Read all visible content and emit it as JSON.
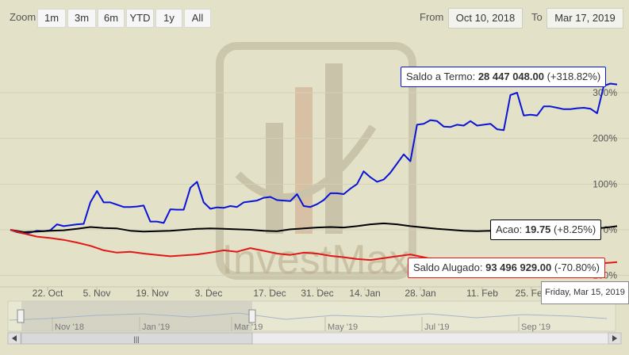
{
  "zoom": {
    "label": "Zoom",
    "buttons": [
      "1m",
      "3m",
      "6m",
      "YTD",
      "1y",
      "All"
    ]
  },
  "range": {
    "from_label": "From",
    "from_value": "Oct 10, 2018",
    "to_label": "To",
    "to_value": "Mar 17, 2019"
  },
  "tooltips": {
    "termo": {
      "name": "Saldo a Termo",
      "value": "28 447 048.00",
      "change": "(+318.82%)"
    },
    "acao": {
      "name": "Acao",
      "value": "19.75",
      "change": "(+8.25%)"
    },
    "alugado": {
      "name": "Saldo Alugado",
      "value": "93 496 929.00",
      "change": "(-70.80%)"
    }
  },
  "date_tooltip": "Friday, Mar 15, 2019",
  "watermark": "InvestMax",
  "colors": {
    "background": "#e3e2c8",
    "termo": "#0a14d8",
    "acao": "#000000",
    "alugado": "#e01818"
  },
  "navigator": {
    "ticks": [
      "Nov '18",
      "Jan '19",
      "Mar '19",
      "May '19",
      "Jul '19",
      "Sep '19"
    ]
  },
  "chart_data": {
    "type": "line",
    "x_ticks": [
      "22. Oct",
      "5. Nov",
      "19. Nov",
      "3. Dec",
      "17. Dec",
      "31. Dec",
      "14. Jan",
      "28. Jan",
      "11. Feb",
      "25. Feb"
    ],
    "y_ticks": [
      "300%",
      "200%",
      "100%",
      "0%",
      "-100%"
    ],
    "ylim": [
      -100,
      350
    ],
    "series": [
      {
        "name": "Saldo a Termo",
        "color": "#0a14d8",
        "values": [
          [
            0,
            0
          ],
          [
            1,
            -5
          ],
          [
            2,
            -8
          ],
          [
            3,
            -6
          ],
          [
            4,
            -2
          ],
          [
            5,
            -3
          ],
          [
            6,
            -1
          ],
          [
            7,
            12
          ],
          [
            8,
            8
          ],
          [
            9,
            10
          ],
          [
            10,
            12
          ],
          [
            11,
            13
          ],
          [
            12,
            60
          ],
          [
            13,
            85
          ],
          [
            14,
            60
          ],
          [
            15,
            60
          ],
          [
            16,
            55
          ],
          [
            17,
            50
          ],
          [
            18,
            50
          ],
          [
            19,
            51
          ],
          [
            20,
            53
          ],
          [
            21,
            18
          ],
          [
            22,
            18
          ],
          [
            23,
            15
          ],
          [
            24,
            45
          ],
          [
            25,
            44
          ],
          [
            26,
            44
          ],
          [
            27,
            92
          ],
          [
            28,
            105
          ],
          [
            29,
            60
          ],
          [
            30,
            46
          ],
          [
            31,
            49
          ],
          [
            32,
            48
          ],
          [
            33,
            52
          ],
          [
            34,
            50
          ],
          [
            35,
            60
          ],
          [
            36,
            62
          ],
          [
            37,
            64
          ],
          [
            38,
            70
          ],
          [
            39,
            72
          ],
          [
            40,
            65
          ],
          [
            41,
            64
          ],
          [
            42,
            63
          ],
          [
            43,
            78
          ],
          [
            44,
            52
          ],
          [
            45,
            50
          ],
          [
            46,
            56
          ],
          [
            47,
            65
          ],
          [
            48,
            80
          ],
          [
            49,
            80
          ],
          [
            50,
            78
          ],
          [
            51,
            90
          ],
          [
            52,
            100
          ],
          [
            53,
            128
          ],
          [
            54,
            115
          ],
          [
            55,
            105
          ],
          [
            56,
            110
          ],
          [
            57,
            125
          ],
          [
            58,
            145
          ],
          [
            59,
            165
          ],
          [
            60,
            150
          ],
          [
            61,
            230
          ],
          [
            62,
            232
          ],
          [
            63,
            240
          ],
          [
            64,
            238
          ],
          [
            65,
            226
          ],
          [
            66,
            225
          ],
          [
            67,
            230
          ],
          [
            68,
            228
          ],
          [
            69,
            238
          ],
          [
            70,
            228
          ],
          [
            71,
            230
          ],
          [
            72,
            232
          ],
          [
            73,
            220
          ],
          [
            74,
            218
          ],
          [
            75,
            295
          ],
          [
            76,
            300
          ],
          [
            77,
            250
          ],
          [
            78,
            252
          ],
          [
            79,
            250
          ],
          [
            80,
            270
          ],
          [
            81,
            270
          ],
          [
            82,
            267
          ],
          [
            83,
            264
          ],
          [
            84,
            264
          ],
          [
            85,
            266
          ],
          [
            86,
            267
          ],
          [
            87,
            265
          ],
          [
            88,
            255
          ],
          [
            89,
            315
          ],
          [
            90,
            320
          ],
          [
            91,
            318
          ]
        ]
      },
      {
        "name": "Acao",
        "color": "#000000",
        "values": [
          [
            0,
            0
          ],
          [
            2,
            -5
          ],
          [
            4,
            -4
          ],
          [
            6,
            -2
          ],
          [
            8,
            -1
          ],
          [
            10,
            2
          ],
          [
            12,
            6
          ],
          [
            14,
            4
          ],
          [
            16,
            3
          ],
          [
            18,
            -2
          ],
          [
            20,
            -4
          ],
          [
            22,
            -3
          ],
          [
            24,
            -2
          ],
          [
            26,
            0
          ],
          [
            28,
            2
          ],
          [
            30,
            3
          ],
          [
            32,
            2
          ],
          [
            34,
            1
          ],
          [
            36,
            0
          ],
          [
            38,
            -2
          ],
          [
            40,
            -3
          ],
          [
            42,
            1
          ],
          [
            44,
            3
          ],
          [
            46,
            5
          ],
          [
            48,
            6
          ],
          [
            50,
            5
          ],
          [
            52,
            8
          ],
          [
            54,
            12
          ],
          [
            56,
            14
          ],
          [
            58,
            12
          ],
          [
            60,
            8
          ],
          [
            62,
            5
          ],
          [
            64,
            2
          ],
          [
            66,
            0
          ],
          [
            68,
            -2
          ],
          [
            70,
            -3
          ],
          [
            72,
            -2
          ],
          [
            74,
            -4
          ],
          [
            76,
            -5
          ],
          [
            78,
            -3
          ],
          [
            80,
            -1
          ],
          [
            82,
            0
          ],
          [
            84,
            1
          ],
          [
            86,
            2
          ],
          [
            88,
            3
          ],
          [
            90,
            6
          ],
          [
            91,
            8
          ]
        ]
      },
      {
        "name": "Saldo Alugado",
        "color": "#e01818",
        "values": [
          [
            0,
            0
          ],
          [
            2,
            -8
          ],
          [
            4,
            -15
          ],
          [
            6,
            -18
          ],
          [
            8,
            -22
          ],
          [
            10,
            -28
          ],
          [
            12,
            -35
          ],
          [
            14,
            -45
          ],
          [
            16,
            -50
          ],
          [
            18,
            -48
          ],
          [
            20,
            -52
          ],
          [
            22,
            -55
          ],
          [
            24,
            -58
          ],
          [
            26,
            -56
          ],
          [
            28,
            -54
          ],
          [
            30,
            -50
          ],
          [
            32,
            -45
          ],
          [
            34,
            -48
          ],
          [
            36,
            -40
          ],
          [
            38,
            -46
          ],
          [
            40,
            -52
          ],
          [
            42,
            -55
          ],
          [
            44,
            -50
          ],
          [
            46,
            -52
          ],
          [
            48,
            -57
          ],
          [
            50,
            -60
          ],
          [
            52,
            -64
          ],
          [
            54,
            -66
          ],
          [
            56,
            -62
          ],
          [
            58,
            -58
          ],
          [
            60,
            -54
          ],
          [
            62,
            -60
          ],
          [
            64,
            -66
          ],
          [
            66,
            -70
          ],
          [
            68,
            -72
          ],
          [
            70,
            -74
          ],
          [
            72,
            -73
          ],
          [
            74,
            -72
          ],
          [
            76,
            -71
          ],
          [
            78,
            -72
          ],
          [
            80,
            -73
          ],
          [
            82,
            -72
          ],
          [
            84,
            -74
          ],
          [
            86,
            -76
          ],
          [
            88,
            -74
          ],
          [
            90,
            -72
          ],
          [
            91,
            -70.8
          ]
        ]
      }
    ]
  }
}
